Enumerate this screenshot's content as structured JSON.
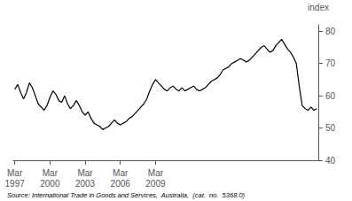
{
  "chart_data": {
    "type": "line",
    "ylabel": "index",
    "annotations": [
      "Source: International Trade in Goods and Services,  Australia,  (cat.  no.  5368.0)"
    ],
    "color": "#000000",
    "ylim": [
      40,
      82
    ],
    "yticks": [
      40,
      50,
      60,
      70,
      80
    ],
    "grid": false,
    "categories": [
      "Mar\n1997",
      null,
      null,
      null,
      null,
      null,
      null,
      null,
      null,
      null,
      null,
      null,
      "Mar\n2000",
      null,
      null,
      null,
      null,
      null,
      null,
      null,
      null,
      null,
      null,
      null,
      "Mar\n2003",
      null,
      null,
      null,
      null,
      null,
      null,
      null,
      null,
      null,
      null,
      null,
      "Mar\n2006",
      null,
      null,
      null,
      null,
      null,
      null,
      null,
      null,
      null,
      null,
      null,
      "Mar\n2009",
      null,
      null,
      null,
      null,
      null,
      null,
      null,
      null,
      null,
      null,
      null,
      null,
      null,
      null,
      null,
      null,
      null,
      null,
      null,
      null,
      null,
      null,
      null,
      null,
      null,
      null,
      null,
      null,
      null,
      null,
      null,
      null,
      null,
      null,
      null,
      null,
      null,
      null,
      null,
      null,
      null,
      null,
      null,
      null,
      null,
      null,
      null,
      null,
      null,
      null,
      null,
      null,
      null,
      null,
      null
    ],
    "values": [
      62.0,
      63.5,
      61.0,
      59.0,
      61.0,
      64.0,
      62.5,
      60.0,
      57.5,
      56.5,
      55.5,
      57.0,
      59.5,
      61.5,
      60.5,
      58.5,
      58.0,
      60.0,
      57.5,
      56.0,
      57.0,
      58.5,
      57.0,
      55.0,
      54.0,
      55.0,
      53.0,
      51.5,
      51.0,
      50.5,
      49.5,
      50.0,
      50.5,
      51.5,
      52.5,
      51.5,
      51.0,
      51.5,
      52.0,
      53.0,
      53.5,
      54.5,
      55.5,
      56.5,
      57.5,
      59.0,
      61.5,
      63.5,
      65.0,
      64.0,
      63.0,
      62.0,
      61.5,
      62.5,
      63.0,
      62.0,
      61.5,
      62.5,
      61.5,
      62.0,
      62.5,
      63.0,
      62.0,
      61.5,
      62.0,
      62.5,
      63.5,
      64.5,
      65.0,
      65.5,
      66.5,
      68.0,
      68.5,
      69.0,
      70.0,
      70.5,
      71.0,
      71.5,
      71.0,
      70.5,
      71.0,
      72.0,
      73.0,
      74.0,
      75.0,
      75.5,
      74.5,
      73.5,
      74.0,
      75.5,
      76.5,
      77.5,
      76.0,
      74.5,
      73.5,
      72.0,
      70.0,
      63.0,
      57.0,
      56.0,
      55.5,
      56.5,
      55.5,
      56.0
    ]
  }
}
